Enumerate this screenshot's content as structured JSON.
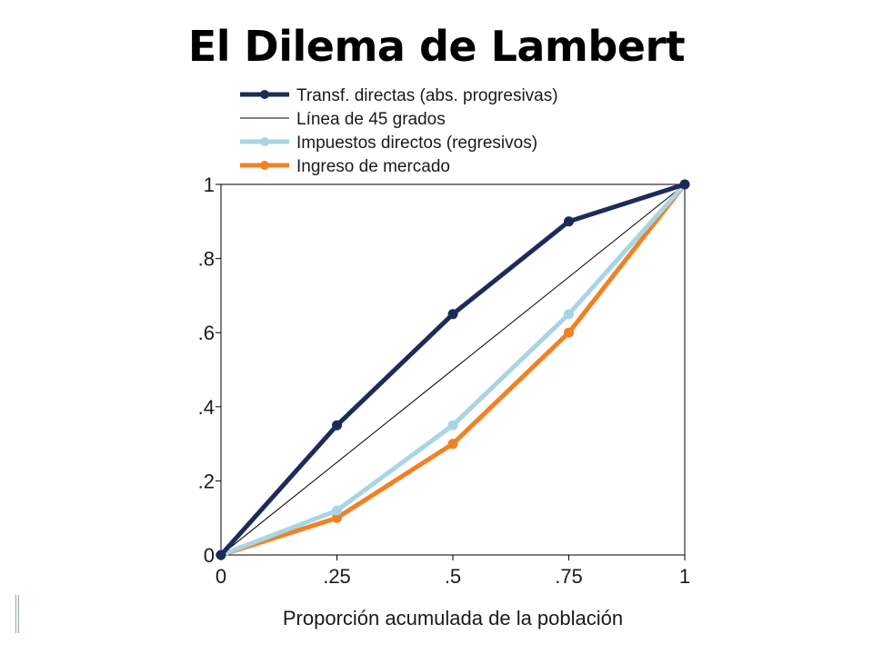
{
  "slide": {
    "title": "El Dilema de Lambert"
  },
  "chart_data": {
    "type": "line",
    "xlabel": "Proporción acumulada de la población",
    "ylabel": "",
    "xlim": [
      0,
      1
    ],
    "ylim": [
      0,
      1
    ],
    "x_ticks": [
      0,
      0.25,
      0.5,
      0.75,
      1
    ],
    "x_tick_labels": [
      "0",
      ".25",
      ".5",
      ".75",
      "1"
    ],
    "y_ticks": [
      0,
      0.2,
      0.4,
      0.6,
      0.8,
      1
    ],
    "y_tick_labels": [
      "0",
      ".2",
      ".4",
      ".6",
      ".8",
      "1"
    ],
    "grid": false,
    "legend_position": "top",
    "series": [
      {
        "name": "Transf. directas (abs. progresivas)",
        "color": "#1c2b5a",
        "markers": true,
        "x": [
          0,
          0.25,
          0.5,
          0.75,
          1
        ],
        "y": [
          0,
          0.35,
          0.65,
          0.9,
          1
        ]
      },
      {
        "name": "Línea de 45 grados",
        "color": "#000000",
        "markers": false,
        "x": [
          0,
          1
        ],
        "y": [
          0,
          1
        ]
      },
      {
        "name": "Impuestos directos (regresivos)",
        "color": "#a8d5e5",
        "markers": true,
        "x": [
          0,
          0.25,
          0.5,
          0.75,
          1
        ],
        "y": [
          0,
          0.12,
          0.35,
          0.65,
          1
        ]
      },
      {
        "name": "Ingreso de mercado",
        "color": "#f28123",
        "markers": true,
        "x": [
          0,
          0.25,
          0.5,
          0.75,
          1
        ],
        "y": [
          0,
          0.1,
          0.3,
          0.6,
          1
        ]
      }
    ]
  }
}
